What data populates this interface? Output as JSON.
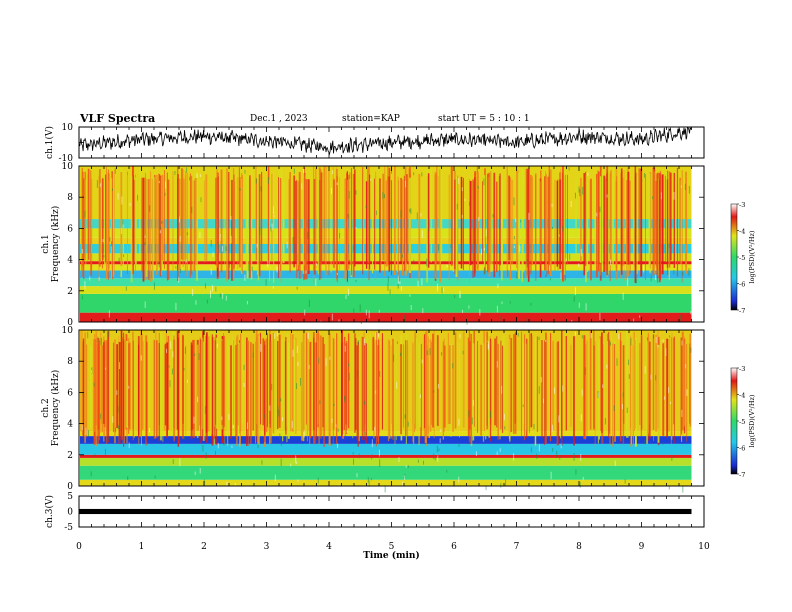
{
  "header": {
    "title": "VLF Spectra",
    "date": "Dec.1 , 2023",
    "station": "station=KAP",
    "start_ut": "start  UT =  5 : 10 : 1"
  },
  "chart_data": [
    {
      "type": "line",
      "panel": "ch1-waveform",
      "ylabel": "ch.1(V)",
      "ylim": [
        -10,
        10
      ],
      "yticks": [
        "10",
        "-10"
      ],
      "xlim": [
        0,
        10
      ],
      "x_extent_min": 9.8,
      "series": [
        {
          "values_description_shown": "",
          "x": [
            0,
            1,
            2,
            3,
            4,
            5,
            6,
            7,
            8,
            9,
            9.8
          ],
          "values": [
            -2,
            2,
            4,
            1,
            -3,
            0,
            2,
            0,
            4,
            2,
            8
          ]
        }
      ],
      "color": "#000000"
    },
    {
      "type": "heatmap",
      "panel": "ch1-spectrogram",
      "ylabel": "ch.1\nFrequency  (kHz)",
      "ylim": [
        0,
        10
      ],
      "yticks": [
        "0",
        "2",
        "4",
        "6",
        "8",
        "10"
      ],
      "xlim": [
        0,
        10
      ],
      "x_extent_min": 9.8,
      "bands_khz": [
        [
          0,
          0.6,
          "#e21b1b"
        ],
        [
          0.6,
          1.8,
          "#31d66a"
        ],
        [
          1.8,
          2.3,
          "#d8e01a"
        ],
        [
          2.3,
          2.8,
          "#3fe0a5"
        ],
        [
          2.8,
          3.3,
          "#2fb4e8"
        ],
        [
          3.3,
          3.7,
          "#e3e21a"
        ],
        [
          3.7,
          3.9,
          "#e21b1b"
        ],
        [
          3.9,
          4.4,
          "#d3e01b"
        ],
        [
          4.4,
          5.0,
          "#2ad0e0"
        ],
        [
          5.0,
          5.4,
          "#e6d21b"
        ],
        [
          5.4,
          6.0,
          "#d9e319"
        ],
        [
          6.0,
          6.6,
          "#42d8c8"
        ],
        [
          6.6,
          10,
          "#e4d418"
        ]
      ],
      "colorbar": {
        "label": "log(PSD)(V²/Hz)",
        "ticks": [
          "-3",
          "-4",
          "-5",
          "-6",
          "-7"
        ],
        "range": [
          -7,
          -3
        ]
      }
    },
    {
      "type": "heatmap",
      "panel": "ch2-spectrogram",
      "ylabel": "ch.2\nFrequency  (kHz)",
      "ylim": [
        0,
        10
      ],
      "yticks": [
        "0",
        "2",
        "4",
        "6",
        "8",
        "10"
      ],
      "xlim": [
        0,
        10
      ],
      "x_extent_min": 9.8,
      "bands_khz": [
        [
          0,
          0.4,
          "#e3d91a"
        ],
        [
          0.4,
          1.3,
          "#33d87a"
        ],
        [
          1.3,
          1.8,
          "#b6e02a"
        ],
        [
          1.8,
          2.0,
          "#e21b1b"
        ],
        [
          2.0,
          2.7,
          "#27c6e6"
        ],
        [
          2.7,
          3.2,
          "#1a40d8"
        ],
        [
          3.2,
          3.5,
          "#e3dd19"
        ],
        [
          3.5,
          10,
          "#e4cc18"
        ]
      ],
      "colorbar": {
        "label": "log(PSD)(V²/Hz)",
        "ticks": [
          "-3",
          "-4",
          "-5",
          "-6",
          "-7"
        ],
        "range": [
          -7,
          -3
        ]
      }
    },
    {
      "type": "line",
      "panel": "ch3-waveform",
      "ylabel": "ch.3(V)",
      "ylim": [
        -5,
        5
      ],
      "yticks": [
        "5",
        "0",
        "-5"
      ],
      "xlim": [
        0,
        10
      ],
      "x_extent_min": 9.8,
      "series": [
        {
          "x": [
            0,
            9.8
          ],
          "values": [
            0,
            0
          ]
        }
      ],
      "band_halfwidth_v": 0.5,
      "color": "#000000"
    }
  ],
  "xaxis": {
    "label": "Time  (min)",
    "ticks": [
      "0",
      "1",
      "2",
      "3",
      "4",
      "5",
      "6",
      "7",
      "8",
      "9",
      "10"
    ]
  }
}
